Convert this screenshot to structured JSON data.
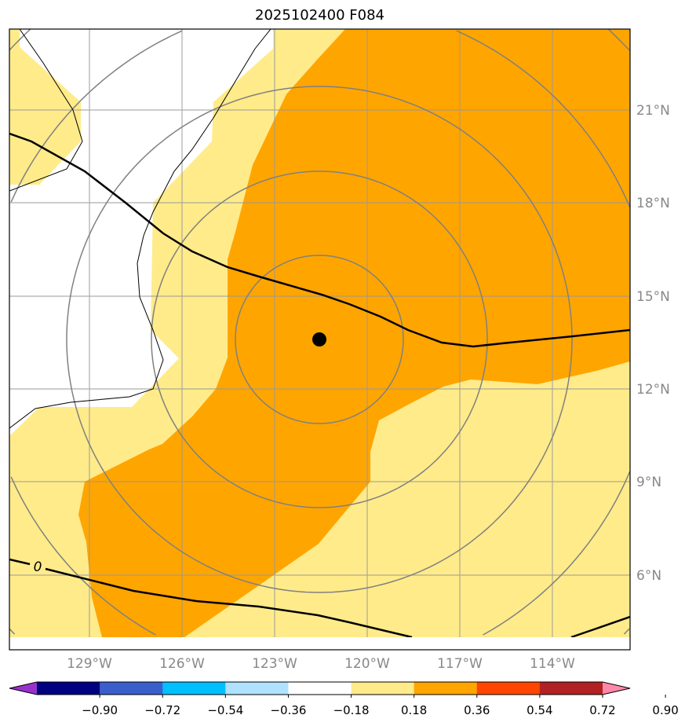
{
  "title": "2025102400 F084",
  "chart_data": {
    "type": "map-filled-contour",
    "title": "2025102400 F084",
    "lon_ticks": [
      "129°W",
      "126°W",
      "123°W",
      "120°W",
      "117°W",
      "114°W"
    ],
    "lat_ticks": [
      "21°N",
      "18°N",
      "15°N",
      "12°N",
      "9°N",
      "6°N"
    ],
    "lon_range": [
      -131.6,
      -111.5
    ],
    "lat_range": [
      3.6,
      23.6
    ],
    "center_marker": {
      "lon": -122.5,
      "lat": 13.6
    },
    "contour_label": "0",
    "colorbar": {
      "levels": [
        "−0.90",
        "−0.72",
        "−0.54",
        "−0.36",
        "−0.18",
        "0.18",
        "0.36",
        "0.54",
        "0.72",
        "0.90"
      ],
      "colors": [
        "#9932cc",
        "#000080",
        "#3a5fcd",
        "#00bfff",
        "#b0e2ff",
        "#ffffff",
        "#ffeb8a",
        "#ffa500",
        "#ff4500",
        "#b22222",
        "#ff88aa"
      ],
      "extend": "both"
    },
    "filled_levels_present": [
      "0.18–0.36",
      "0.36–0.54"
    ]
  }
}
